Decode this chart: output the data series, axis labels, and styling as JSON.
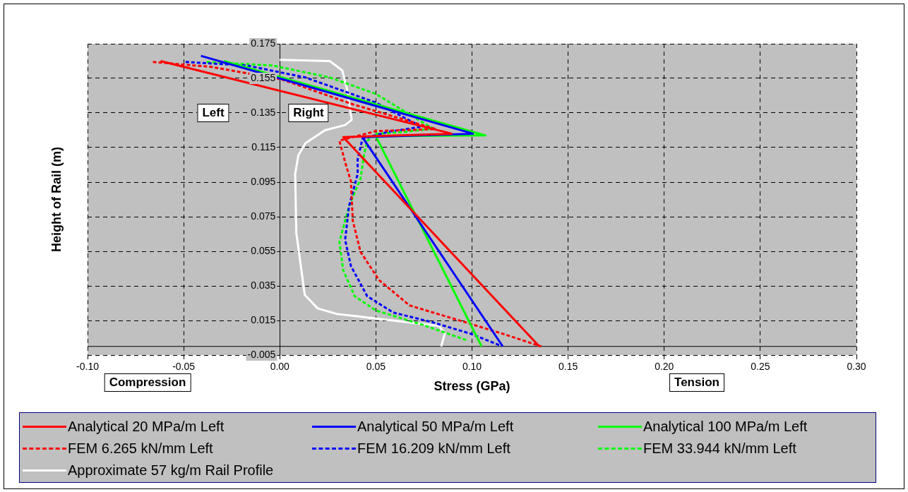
{
  "chart_data": {
    "type": "line",
    "xlabel": "Stress (GPa)",
    "ylabel": "Height of Rail (m)",
    "xlim": [
      -0.1,
      0.3
    ],
    "xticks": [
      {
        "value": -0.1,
        "label": "-0.10"
      },
      {
        "value": -0.05,
        "label": "-0.05"
      },
      {
        "value": 0,
        "label": "0.00"
      },
      {
        "value": 0.05,
        "label": "0.05"
      },
      {
        "value": 0.1,
        "label": "0.10"
      },
      {
        "value": 0.15,
        "label": "0.15"
      },
      {
        "value": 0.2,
        "label": "0.20"
      },
      {
        "value": 0.25,
        "label": "0.25"
      },
      {
        "value": 0.3,
        "label": "0.30"
      }
    ],
    "ylim": [
      -0.005,
      0.175
    ],
    "yticks": [
      -0.005,
      0.015,
      0.035,
      0.055,
      0.075,
      0.095,
      0.115,
      0.135,
      0.155,
      0.175
    ],
    "grid": true,
    "legend": "bottom",
    "marker": "none",
    "annotations": [
      "Left",
      "Right",
      "Compression",
      "Tension"
    ],
    "series": [
      {
        "name": "Analytical 20 MPa/m Left",
        "color": "#ff0000",
        "line_style": "solid",
        "x": [
          -0.062,
          0.0895,
          0.033,
          0.135
        ],
        "values": [
          0.165,
          0.123,
          0.121,
          0
        ]
      },
      {
        "name": "Analytical 50 MPa/m Left",
        "color": "#0000ff",
        "line_style": "solid",
        "x": [
          -0.041,
          0.1005,
          0.043,
          0.116
        ],
        "values": [
          0.168,
          0.123,
          0.121,
          0
        ]
      },
      {
        "name": "Analytical 100 MPa/m Left",
        "color": "#00ff00",
        "line_style": "solid",
        "x": [
          -0.029,
          0.107,
          0.05,
          0.105
        ],
        "values": [
          0.165,
          0.122,
          0.1215,
          0
        ]
      },
      {
        "name": "FEM 6.265 kN/mm Left",
        "color": "#ff0000",
        "line_style": "dashed",
        "x": [
          -0.066,
          -0.0355,
          0.0013,
          0.038,
          0.081,
          0.05,
          0.031,
          0.034,
          0.037,
          0.038,
          0.042,
          0.0516,
          0.0675,
          0.092,
          0.116,
          0.136
        ],
        "values": [
          0.1645,
          0.1616,
          0.1543,
          0.14,
          0.1257,
          0.1245,
          0.119,
          0.1065,
          0.0955,
          0.0726,
          0.0547,
          0.0384,
          0.0237,
          0.0155,
          0.0073,
          0
        ]
      },
      {
        "name": "FEM 16.209 kN/mm Left",
        "color": "#0000ff",
        "line_style": "dashed",
        "x": [
          -0.049,
          -0.017,
          0.0134,
          0.05,
          0.0737,
          0.056,
          0.043,
          0.0405,
          0.0405,
          0.036,
          0.034,
          0.037,
          0.0455,
          0.059,
          0.0796,
          0.0994,
          0.115
        ],
        "values": [
          0.1645,
          0.1624,
          0.1555,
          0.141,
          0.127,
          0.124,
          0.12,
          0.108,
          0.0996,
          0.081,
          0.0616,
          0.0465,
          0.029,
          0.0196,
          0.0139,
          0.0073,
          0.0004
        ]
      },
      {
        "name": "FEM 33.944 kN/mm Left",
        "color": "#00ff00",
        "line_style": "dashed",
        "x": [
          -0.038,
          -0.0035,
          0.026,
          0.05,
          0.0796,
          0.065,
          0.05,
          0.0455,
          0.044,
          0.042,
          0.036,
          0.031,
          0.033,
          0.039,
          0.05,
          0.0737,
          0.098
        ],
        "values": [
          0.1645,
          0.1624,
          0.1555,
          0.146,
          0.126,
          0.124,
          0.1229,
          0.1188,
          0.112,
          0.097,
          0.081,
          0.0604,
          0.044,
          0.029,
          0.0208,
          0.0127,
          0.0033
        ]
      },
      {
        "name": "Approximate 57 kg/m Rail Profile",
        "color": "#ffffff",
        "line_style": "solid",
        "x": [
          0,
          0.026,
          0.0325,
          0.035,
          0.0374,
          0.034,
          0.0235,
          0.0134,
          0.0097,
          0.008,
          0.0086,
          0.013,
          0.0197,
          0.0296,
          0.083,
          0.0858,
          0.084
        ],
        "values": [
          0.1657,
          0.165,
          0.1596,
          0.1486,
          0.131,
          0.128,
          0.125,
          0.1176,
          0.1106,
          0.0996,
          0.0657,
          0.0298,
          0.022,
          0.0188,
          0.0118,
          0.0073,
          0
        ]
      }
    ]
  }
}
